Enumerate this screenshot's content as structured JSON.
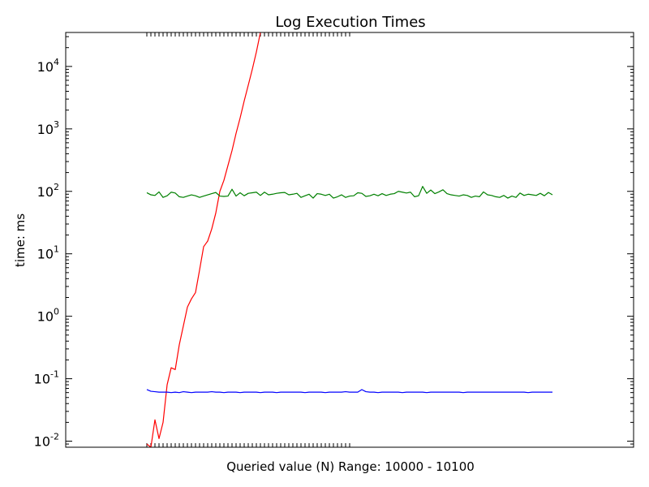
{
  "chart_data": {
    "type": "line",
    "title": "Log Execution Times",
    "xlabel": "Queried value (N) Range:  10000 - 10100",
    "ylabel": "time: ms",
    "yscale": "log",
    "ylim": [
      0.008,
      35000
    ],
    "xlim": [
      -20,
      120
    ],
    "y_ticks": [
      {
        "value": 0.01,
        "base": "10",
        "exp": "-2"
      },
      {
        "value": 0.1,
        "base": "10",
        "exp": "-1"
      },
      {
        "value": 1,
        "base": "10",
        "exp": "0"
      },
      {
        "value": 10,
        "base": "10",
        "exp": "1"
      },
      {
        "value": 100,
        "base": "10",
        "exp": "2"
      },
      {
        "value": 1000,
        "base": "10",
        "exp": "3"
      },
      {
        "value": 10000,
        "base": "10",
        "exp": "4"
      }
    ],
    "grid": false,
    "series": [
      {
        "color": "#ff0000",
        "x": [
          0,
          1,
          2,
          3,
          4,
          5,
          6,
          7,
          8,
          9,
          10,
          11,
          12,
          13,
          14,
          15,
          16,
          17,
          18,
          19,
          20,
          21,
          22,
          23,
          24,
          25,
          26,
          27,
          28
        ],
        "values": [
          0.009,
          0.008,
          0.022,
          0.011,
          0.02,
          0.08,
          0.15,
          0.14,
          0.35,
          0.7,
          1.4,
          1.9,
          2.4,
          5.5,
          13,
          16,
          25,
          45,
          100,
          150,
          260,
          450,
          850,
          1500,
          2800,
          5000,
          9000,
          17000,
          35000
        ]
      },
      {
        "color": "#008000",
        "x": [
          0,
          1,
          2,
          3,
          4,
          5,
          6,
          7,
          8,
          9,
          10,
          11,
          12,
          13,
          14,
          15,
          16,
          17,
          18,
          19,
          20,
          21,
          22,
          23,
          24,
          25,
          26,
          27,
          28,
          29,
          30,
          31,
          32,
          33,
          34,
          35,
          36,
          37,
          38,
          39,
          40,
          41,
          42,
          43,
          44,
          45,
          46,
          47,
          48,
          49,
          50,
          51,
          52,
          53,
          54,
          55,
          56,
          57,
          58,
          59,
          60,
          61,
          62,
          63,
          64,
          65,
          66,
          67,
          68,
          69,
          70,
          71,
          72,
          73,
          74,
          75,
          76,
          77,
          78,
          79,
          80,
          81,
          82,
          83,
          84,
          85,
          86,
          87,
          88,
          89,
          90,
          91,
          92,
          93,
          94,
          95,
          96,
          97,
          98,
          99,
          100
        ],
        "values": [
          95,
          88,
          86,
          98,
          80,
          85,
          97,
          94,
          82,
          80,
          84,
          88,
          85,
          80,
          84,
          88,
          92,
          96,
          84,
          83,
          84,
          108,
          84,
          95,
          85,
          93,
          95,
          97,
          86,
          97,
          88,
          90,
          93,
          95,
          96,
          88,
          90,
          93,
          80,
          85,
          90,
          78,
          92,
          90,
          86,
          90,
          78,
          82,
          88,
          80,
          84,
          85,
          95,
          93,
          83,
          85,
          90,
          85,
          92,
          86,
          90,
          92,
          100,
          97,
          94,
          97,
          82,
          85,
          120,
          93,
          105,
          92,
          98,
          106,
          92,
          88,
          86,
          84,
          88,
          86,
          80,
          84,
          82,
          98,
          88,
          86,
          82,
          80,
          86,
          78,
          84,
          80,
          94,
          86,
          90,
          88,
          86,
          93,
          85,
          96,
          88
        ]
      },
      {
        "color": "#0000ff",
        "x": [
          0,
          1,
          2,
          3,
          4,
          5,
          6,
          7,
          8,
          9,
          10,
          11,
          12,
          13,
          14,
          15,
          16,
          17,
          18,
          19,
          20,
          21,
          22,
          23,
          24,
          25,
          26,
          27,
          28,
          29,
          30,
          31,
          32,
          33,
          34,
          35,
          36,
          37,
          38,
          39,
          40,
          41,
          42,
          43,
          44,
          45,
          46,
          47,
          48,
          49,
          50,
          51,
          52,
          53,
          54,
          55,
          56,
          57,
          58,
          59,
          60,
          61,
          62,
          63,
          64,
          65,
          66,
          67,
          68,
          69,
          70,
          71,
          72,
          73,
          74,
          75,
          76,
          77,
          78,
          79,
          80,
          81,
          82,
          83,
          84,
          85,
          86,
          87,
          88,
          89,
          90,
          91,
          92,
          93,
          94,
          95,
          96,
          97,
          98,
          99,
          100
        ],
        "values": [
          0.067,
          0.063,
          0.062,
          0.061,
          0.061,
          0.061,
          0.06,
          0.061,
          0.06,
          0.062,
          0.061,
          0.06,
          0.061,
          0.061,
          0.061,
          0.061,
          0.062,
          0.061,
          0.061,
          0.06,
          0.061,
          0.061,
          0.061,
          0.06,
          0.061,
          0.061,
          0.061,
          0.061,
          0.06,
          0.061,
          0.061,
          0.061,
          0.06,
          0.061,
          0.061,
          0.061,
          0.061,
          0.061,
          0.061,
          0.06,
          0.061,
          0.061,
          0.061,
          0.061,
          0.06,
          0.061,
          0.061,
          0.061,
          0.061,
          0.062,
          0.061,
          0.061,
          0.061,
          0.067,
          0.062,
          0.061,
          0.061,
          0.06,
          0.061,
          0.061,
          0.061,
          0.061,
          0.061,
          0.06,
          0.061,
          0.061,
          0.061,
          0.061,
          0.061,
          0.06,
          0.061,
          0.061,
          0.061,
          0.061,
          0.061,
          0.061,
          0.061,
          0.061,
          0.06,
          0.061,
          0.061,
          0.061,
          0.061,
          0.061,
          0.061,
          0.061,
          0.061,
          0.061,
          0.061,
          0.061,
          0.061,
          0.061,
          0.061,
          0.061,
          0.06,
          0.061,
          0.061,
          0.061,
          0.061,
          0.061,
          0.061
        ]
      }
    ]
  }
}
